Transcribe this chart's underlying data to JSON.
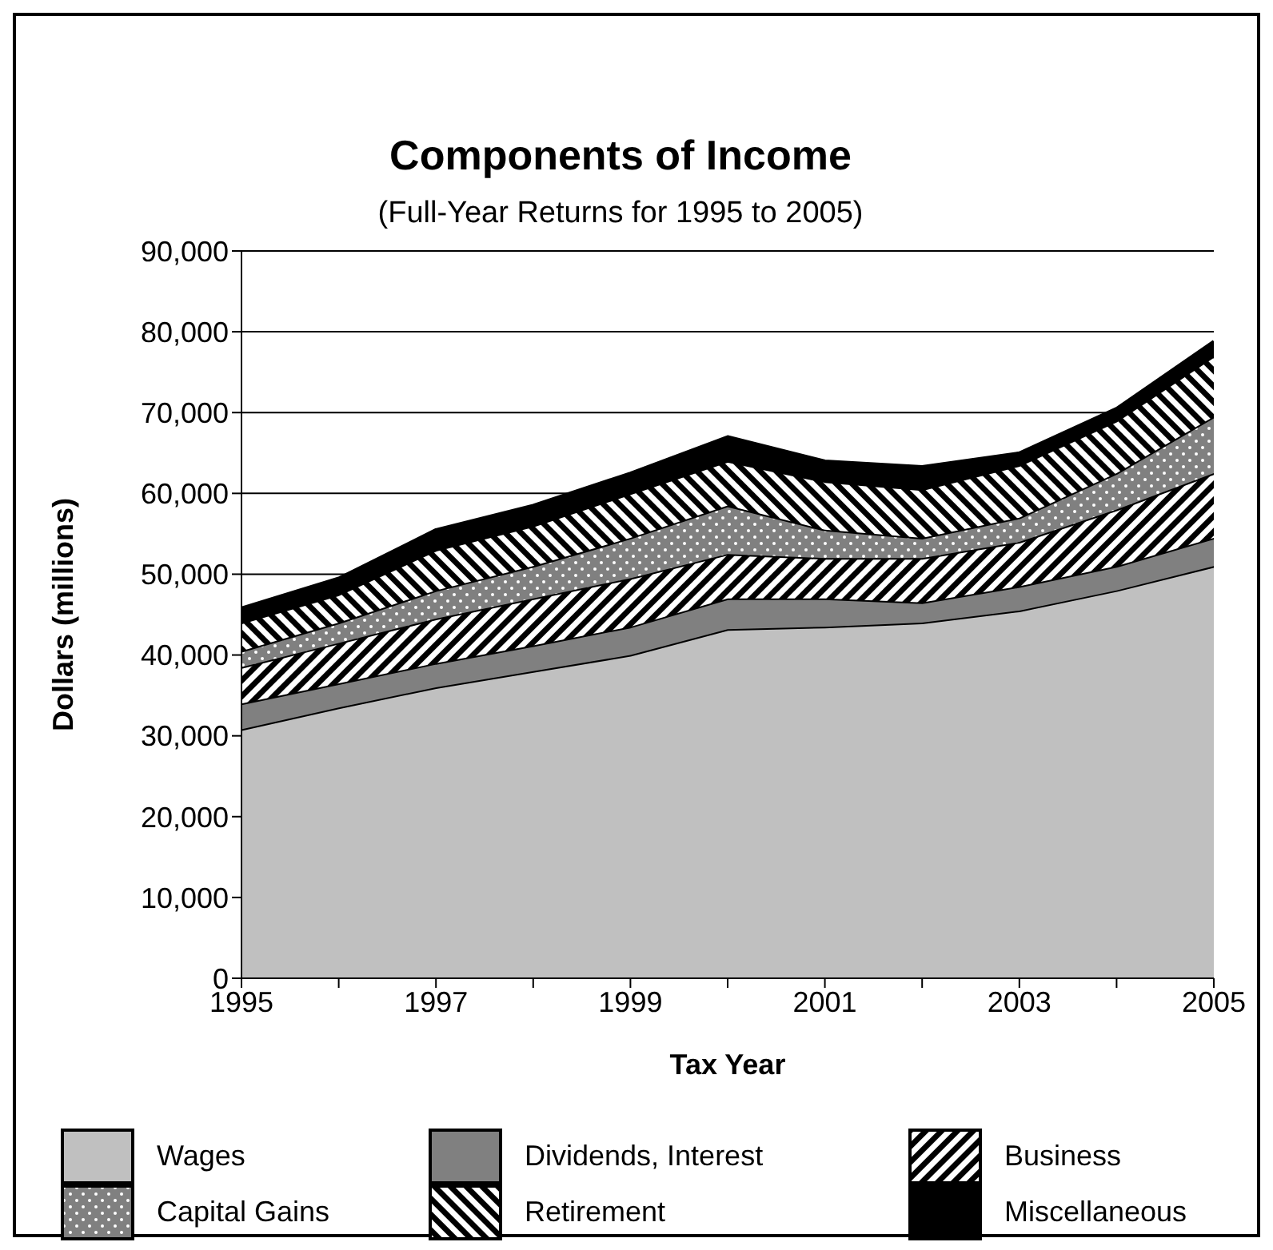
{
  "chart_data": {
    "type": "area",
    "title": "Components of Income",
    "subtitle": "(Full-Year Returns for 1995 to 2005)",
    "xlabel": "Tax Year",
    "ylabel": "Dollars (millions)",
    "x": [
      1995,
      1996,
      1997,
      1998,
      1999,
      2000,
      2001,
      2002,
      2003,
      2004,
      2005
    ],
    "stacked": true,
    "series": [
      {
        "name": "Wages",
        "color": "#c0c0c0",
        "values": [
          30800,
          33500,
          36000,
          38000,
          40000,
          43200,
          43500,
          44000,
          45500,
          48000,
          51000
        ]
      },
      {
        "name": "Dividends, Interest",
        "color": "#808080",
        "values": [
          3200,
          3000,
          3000,
          3200,
          3500,
          3800,
          3500,
          2500,
          3000,
          3000,
          3500
        ]
      },
      {
        "name": "Business",
        "color": "#000000",
        "values": [
          4500,
          5000,
          5500,
          5800,
          6000,
          5500,
          5000,
          5500,
          5500,
          7000,
          8000
        ]
      },
      {
        "name": "Capital Gains",
        "color": "#808080",
        "values": [
          2000,
          2500,
          3500,
          4000,
          5000,
          6000,
          3500,
          2500,
          3000,
          4500,
          7000
        ]
      },
      {
        "name": "Retirement",
        "color": "#000000",
        "values": [
          3500,
          3500,
          5000,
          5000,
          5500,
          5500,
          6000,
          6000,
          6500,
          6500,
          7500
        ]
      },
      {
        "name": "Miscellaneous",
        "color": "#000000",
        "values": [
          1800,
          2000,
          2500,
          2500,
          2500,
          3000,
          2500,
          2800,
          1500,
          1500,
          1800
        ]
      }
    ],
    "xlim": [
      1995,
      2005
    ],
    "xticks": [
      1995,
      {
        "value": 1996,
        "label": null
      },
      1997,
      {
        "value": 1998,
        "label": null
      },
      1999,
      {
        "value": 2000,
        "label": null
      },
      2001,
      {
        "value": 2002,
        "label": null
      },
      2003,
      {
        "value": 2004,
        "label": null
      },
      2005
    ],
    "ylim": [
      0,
      90000
    ],
    "yticks": [
      0,
      {
        "value": 10000,
        "label": "10,000"
      },
      {
        "value": 20000,
        "label": "20,000"
      },
      {
        "value": 30000,
        "label": "30,000"
      },
      {
        "value": 40000,
        "label": "40,000"
      },
      {
        "value": 50000,
        "label": "50,000"
      },
      {
        "value": 60000,
        "label": "60,000"
      },
      {
        "value": 70000,
        "label": "70,000"
      },
      {
        "value": 80000,
        "label": "80,000"
      },
      {
        "value": 90000,
        "label": "90,000"
      }
    ],
    "grid": "y",
    "legend": "bottom"
  }
}
